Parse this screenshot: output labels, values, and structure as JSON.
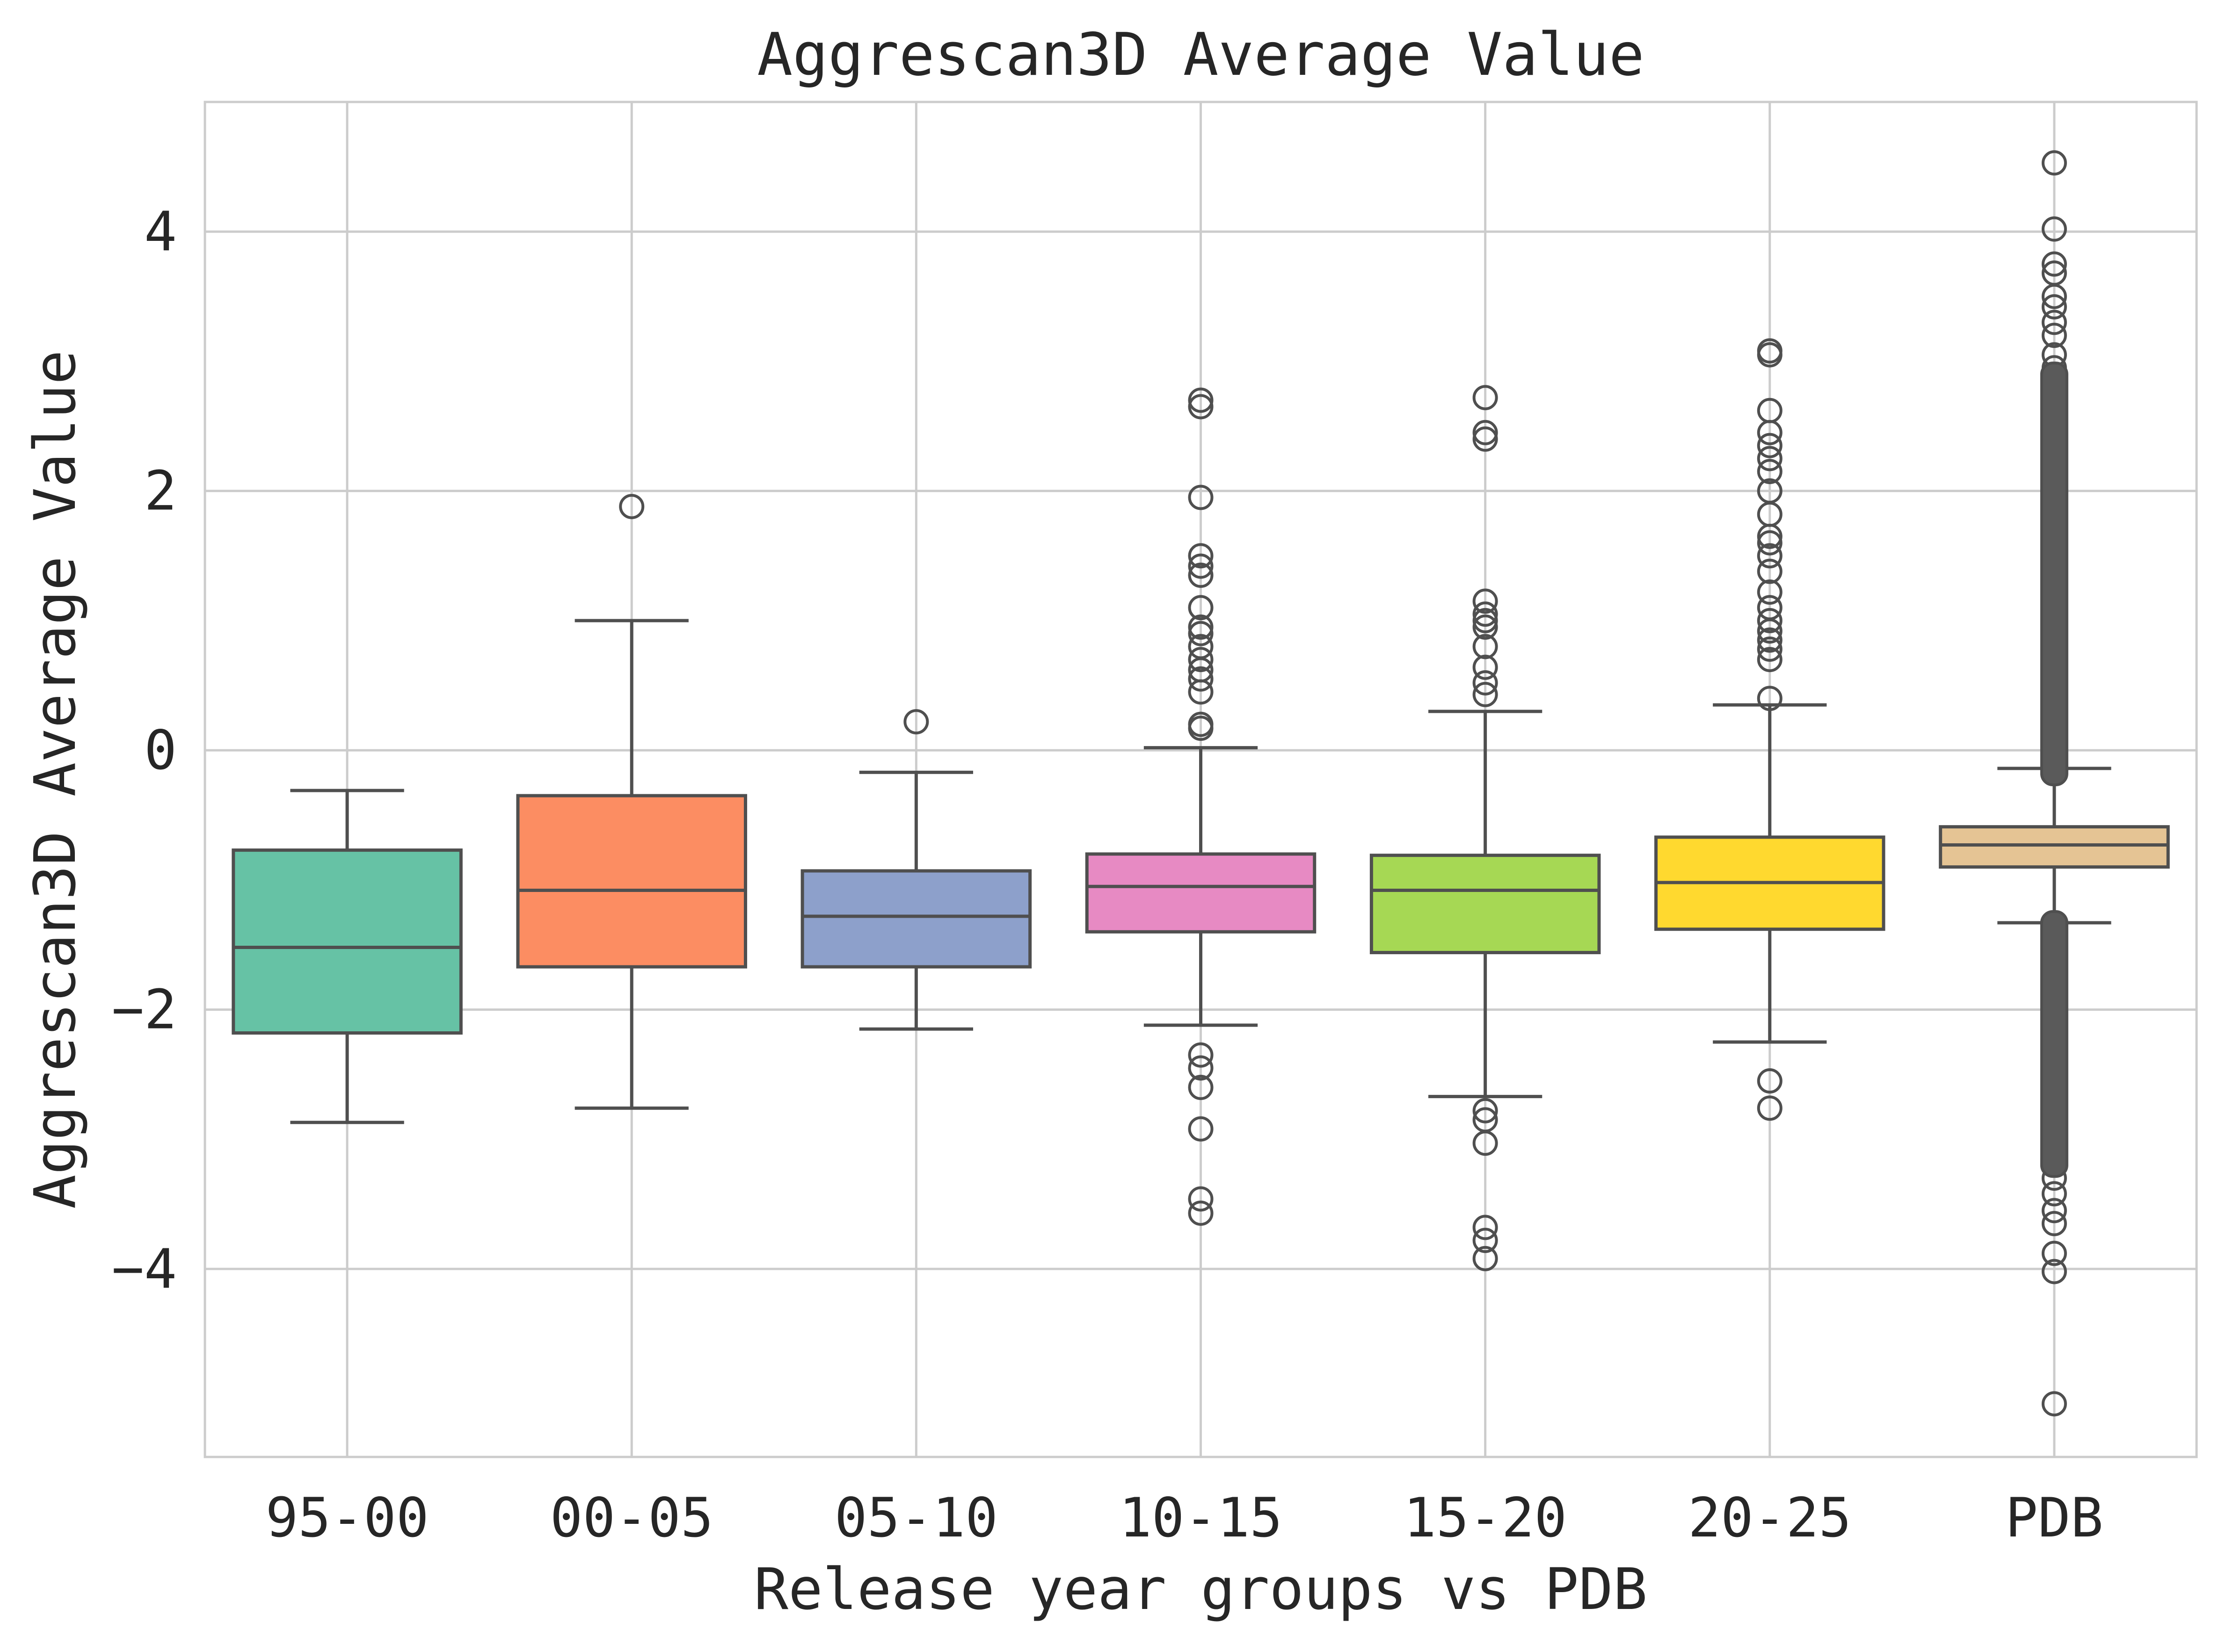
{
  "chart_data": {
    "type": "box",
    "title": "Aggrescan3D Average Value",
    "xlabel": "Release year groups vs PDB",
    "ylabel": "Aggrescan3D Average Value",
    "ylim": [
      -5.45,
      5.0
    ],
    "yticks": [
      4,
      2,
      0,
      -2,
      -4
    ],
    "ytick_labels": [
      "4",
      "2",
      "0",
      "−2",
      "−4"
    ],
    "grid": true,
    "categories": [
      "95-00",
      "00-05",
      "05-10",
      "10-15",
      "15-20",
      "20-25",
      "PDB"
    ],
    "boxes": [
      {
        "category": "95-00",
        "color": "#66c2a5",
        "whislo": -2.87,
        "q1": -2.18,
        "median": -1.52,
        "q3": -0.77,
        "whishi": -0.31,
        "fliers": []
      },
      {
        "category": "00-05",
        "color": "#fc8d62",
        "whislo": -2.76,
        "q1": -1.67,
        "median": -1.08,
        "q3": -0.35,
        "whishi": 1.0,
        "fliers": [
          1.88
        ]
      },
      {
        "category": "05-10",
        "color": "#8da0cb",
        "whislo": -2.15,
        "q1": -1.67,
        "median": -1.28,
        "q3": -0.93,
        "whishi": -0.17,
        "fliers": [
          0.22
        ]
      },
      {
        "category": "10-15",
        "color": "#e78ac3",
        "whislo": -2.12,
        "q1": -1.4,
        "median": -1.05,
        "q3": -0.8,
        "whishi": 0.02,
        "fliers": [
          0.17,
          0.2,
          0.45,
          0.55,
          0.62,
          0.7,
          0.8,
          0.9,
          0.95,
          1.1,
          1.35,
          1.42,
          1.5,
          1.95,
          2.65,
          2.7,
          -2.35,
          -2.45,
          -2.6,
          -2.92,
          -3.46,
          -3.57
        ]
      },
      {
        "category": "15-20",
        "color": "#a6d854",
        "whislo": -2.67,
        "q1": -1.56,
        "median": -1.08,
        "q3": -0.81,
        "whishi": 0.3,
        "fliers": [
          0.43,
          0.52,
          0.64,
          0.8,
          0.95,
          1.0,
          1.05,
          1.15,
          2.4,
          2.45,
          2.72,
          -2.78,
          -2.85,
          -3.03,
          -3.68,
          -3.78,
          -3.92
        ]
      },
      {
        "category": "20-25",
        "color": "#ffd92f",
        "whislo": -2.25,
        "q1": -1.38,
        "median": -1.02,
        "q3": -0.67,
        "whishi": 0.35,
        "fliers": [
          0.4,
          0.7,
          0.78,
          0.85,
          0.92,
          1.0,
          1.1,
          1.22,
          1.38,
          1.5,
          1.6,
          1.65,
          1.82,
          2.0,
          2.15,
          2.25,
          2.35,
          2.45,
          2.62,
          3.05,
          3.08,
          -2.55,
          -2.76
        ]
      },
      {
        "category": "PDB",
        "color": "#e5c494",
        "whislo": -1.33,
        "q1": -0.9,
        "median": -0.73,
        "q3": -0.59,
        "whishi": -0.14,
        "fliers": [
          4.53,
          4.02,
          3.75,
          3.68,
          3.5,
          3.42,
          3.3,
          3.2,
          3.05,
          2.95,
          -3.3,
          -3.42,
          -3.55,
          -3.65,
          -3.88,
          -4.02,
          -5.04
        ],
        "dense_flier_ranges": [
          [
            -0.18,
            2.9
          ],
          [
            -3.2,
            -1.33
          ]
        ]
      }
    ]
  }
}
